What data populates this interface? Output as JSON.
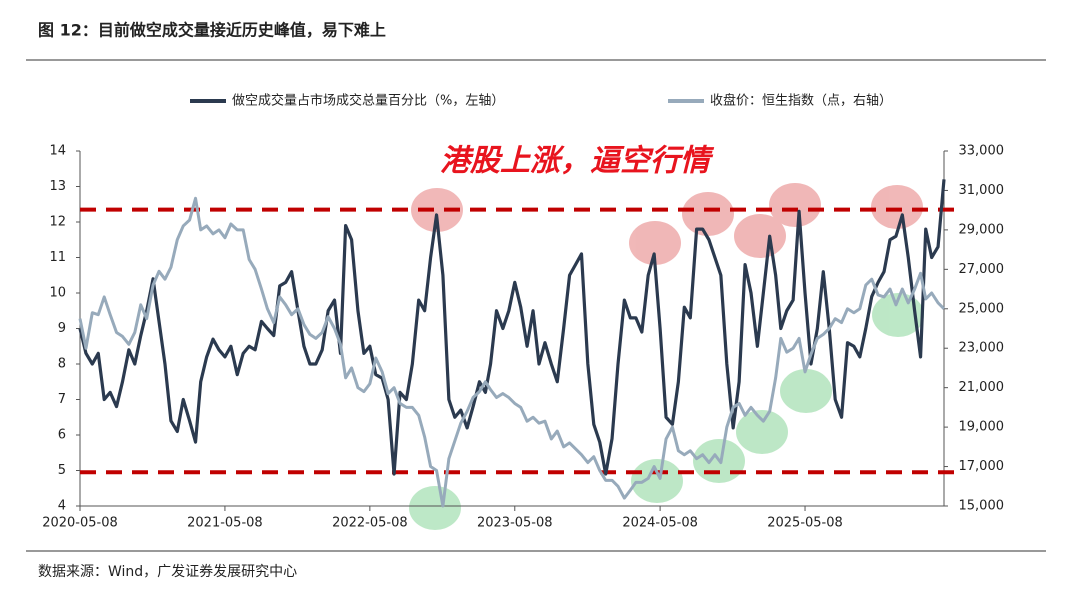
{
  "chart_data": {
    "type": "line",
    "title": "图 12：目前做空成交量接近历史峰值，易下难上",
    "source": "数据来源：Wind，广发证券发展研究中心",
    "annotation": "港股上涨，逼空行情",
    "x": [
      "2020-05-08",
      "2020-05-23",
      "2020-06-08",
      "2020-06-23",
      "2020-07-08",
      "2020-07-23",
      "2020-08-08",
      "2020-08-23",
      "2020-09-08",
      "2020-09-23",
      "2020-10-08",
      "2020-10-23",
      "2020-11-08",
      "2020-11-23",
      "2020-12-08",
      "2020-12-23",
      "2021-01-08",
      "2021-01-23",
      "2021-02-08",
      "2021-02-23",
      "2021-03-08",
      "2021-03-23",
      "2021-04-08",
      "2021-04-23",
      "2021-05-08",
      "2021-05-23",
      "2021-06-08",
      "2021-06-23",
      "2021-07-08",
      "2021-07-23",
      "2021-08-08",
      "2021-08-23",
      "2021-09-08",
      "2021-09-23",
      "2021-10-08",
      "2021-10-23",
      "2021-11-08",
      "2021-11-23",
      "2021-12-08",
      "2021-12-23",
      "2022-01-08",
      "2022-01-23",
      "2022-02-08",
      "2022-02-23",
      "2022-03-08",
      "2022-03-23",
      "2022-04-08",
      "2022-04-23",
      "2022-05-08",
      "2022-05-23",
      "2022-06-08",
      "2022-06-23",
      "2022-07-08",
      "2022-07-23",
      "2022-08-08",
      "2022-08-23",
      "2022-09-08",
      "2022-09-23",
      "2022-10-08",
      "2022-10-23",
      "2022-11-08",
      "2022-11-23",
      "2022-12-08",
      "2022-12-23",
      "2023-01-08",
      "2023-01-23",
      "2023-02-08",
      "2023-02-23",
      "2023-03-08",
      "2023-03-23",
      "2023-04-08",
      "2023-04-23",
      "2023-05-08",
      "2023-05-23",
      "2023-06-08",
      "2023-06-23",
      "2023-07-08",
      "2023-07-23",
      "2023-08-08",
      "2023-08-23",
      "2023-09-08",
      "2023-09-23",
      "2023-10-08",
      "2023-10-23",
      "2023-11-08",
      "2023-11-23",
      "2023-12-08",
      "2023-12-23",
      "2024-01-08",
      "2024-01-23",
      "2024-02-08",
      "2024-02-23",
      "2024-03-08",
      "2024-03-23",
      "2024-04-08",
      "2024-04-23",
      "2024-05-08",
      "2024-05-23",
      "2024-06-08",
      "2024-06-23",
      "2024-07-08",
      "2024-07-23",
      "2024-08-08",
      "2024-08-23",
      "2024-09-08",
      "2024-09-23",
      "2024-10-08",
      "2024-10-23",
      "2024-11-08",
      "2024-11-23",
      "2024-12-08",
      "2024-12-23",
      "2025-01-08",
      "2025-01-23",
      "2025-02-08",
      "2025-02-23",
      "2025-03-08",
      "2025-03-23",
      "2025-04-08",
      "2025-04-23",
      "2025-05-08",
      "2025-05-23",
      "2025-06-08",
      "2025-06-23",
      "2025-07-08",
      "2025-07-23",
      "2025-08-08",
      "2025-08-23",
      "2025-09-08",
      "2025-09-23",
      "2025-10-08",
      "2025-10-23",
      "2025-11-08",
      "2025-11-23",
      "2025-12-08",
      "2025-12-23",
      "2026-01-08",
      "2026-01-23",
      "2026-02-08",
      "2026-02-23",
      "2026-03-08",
      "2026-03-23",
      "2026-04-08",
      "2026-04-23"
    ],
    "xlim": [
      "2020-05-08",
      "2026-04-23"
    ],
    "xticks": [
      "2020-05-08",
      "2021-05-08",
      "2022-05-08",
      "2023-05-08",
      "2024-05-08",
      "2025-05-08"
    ],
    "ylim": [
      4,
      14
    ],
    "yticks": [
      4,
      5,
      6,
      7,
      8,
      9,
      10,
      11,
      12,
      13,
      14
    ],
    "y2lim": [
      15000,
      33000
    ],
    "y2ticks": [
      {
        "value": 15000,
        "label": "15,000"
      },
      {
        "value": 17000,
        "label": "17,000"
      },
      {
        "value": 19000,
        "label": "19,000"
      },
      {
        "value": 21000,
        "label": "21,000"
      },
      {
        "value": 23000,
        "label": "23,000"
      },
      {
        "value": 25000,
        "label": "25,000"
      },
      {
        "value": 27000,
        "label": "27,000"
      },
      {
        "value": 29000,
        "label": "29,000"
      },
      {
        "value": 31000,
        "label": "31,000"
      },
      {
        "value": 33000,
        "label": "33,000"
      }
    ],
    "reference_lines": [
      12.35,
      4.95
    ],
    "reference_color": "#c00000",
    "series": [
      {
        "name": "做空成交量占市场成交总量百分比（%，左轴）",
        "color": "#2b3a4f",
        "values": [
          9.0,
          8.3,
          8.0,
          8.3,
          7.0,
          7.2,
          6.8,
          7.5,
          8.4,
          8.0,
          8.8,
          9.5,
          10.4,
          9.2,
          8.0,
          6.4,
          6.1,
          7.0,
          6.4,
          5.8,
          7.5,
          8.2,
          8.7,
          8.4,
          8.2,
          8.5,
          7.7,
          8.3,
          8.5,
          8.4,
          9.2,
          9.0,
          8.8,
          10.2,
          10.3,
          10.6,
          9.5,
          8.5,
          8.0,
          8.0,
          8.4,
          9.5,
          9.8,
          8.3,
          11.9,
          11.5,
          9.5,
          8.3,
          8.5,
          7.7,
          7.6,
          7.0,
          4.9,
          7.2,
          7.0,
          8.0,
          9.8,
          9.5,
          11.0,
          12.2,
          10.5,
          7.0,
          6.5,
          6.7,
          6.2,
          6.8,
          7.5,
          7.2,
          8.0,
          9.5,
          9.0,
          9.5,
          10.3,
          9.6,
          8.5,
          9.5,
          8.0,
          8.6,
          8.0,
          7.5,
          9.0,
          10.5,
          10.8,
          11.1,
          8.0,
          6.3,
          5.8,
          4.9,
          5.9,
          8.0,
          9.8,
          9.3,
          9.3,
          8.9,
          10.5,
          11.1,
          9.0,
          6.5,
          6.3,
          7.5,
          9.6,
          9.3,
          11.8,
          11.8,
          11.5,
          11.0,
          10.5,
          8.0,
          6.2,
          7.5,
          10.8,
          10.0,
          8.5,
          10.0,
          11.6,
          10.5,
          9.0,
          9.5,
          9.8,
          12.3,
          10.0,
          8.0,
          9.0,
          10.6,
          9.0,
          7.0,
          6.5,
          8.6,
          8.5,
          8.2,
          9.0,
          9.9,
          10.3,
          10.6,
          11.5,
          11.6,
          12.2,
          11.0,
          9.5,
          8.2,
          11.8,
          11.0,
          11.3,
          13.2
        ]
      },
      {
        "name": "收盘价：恒生指数（点，右轴）",
        "color": "#97aabb",
        "axis": "y2",
        "values": [
          24500,
          23000,
          24800,
          24700,
          25600,
          24700,
          23800,
          23600,
          23200,
          23800,
          25200,
          24500,
          26200,
          26900,
          26500,
          27100,
          28500,
          29200,
          29500,
          30600,
          29000,
          29200,
          28800,
          29000,
          28600,
          29300,
          29000,
          29000,
          27500,
          27000,
          26000,
          25000,
          24300,
          25600,
          25200,
          24700,
          25000,
          24200,
          23700,
          23500,
          23800,
          24600,
          24000,
          23200,
          21500,
          22000,
          21000,
          20800,
          21200,
          22500,
          21800,
          20700,
          21000,
          20200,
          20000,
          20000,
          19600,
          18500,
          17000,
          16800,
          15000,
          17400,
          18300,
          19200,
          19800,
          20500,
          20800,
          21300,
          20900,
          20500,
          20700,
          20500,
          20200,
          20000,
          19300,
          19500,
          19200,
          19300,
          18400,
          18800,
          18000,
          18200,
          17900,
          17600,
          17200,
          17500,
          16800,
          16300,
          16300,
          16000,
          15400,
          15800,
          16200,
          16200,
          16400,
          17000,
          16400,
          18400,
          19000,
          17800,
          17600,
          17800,
          17400,
          17600,
          17200,
          17600,
          17200,
          19000,
          20000,
          20200,
          19600,
          20000,
          19600,
          19300,
          19800,
          21500,
          23500,
          22800,
          23000,
          23500,
          21800,
          22700,
          23500,
          23700,
          24000,
          24500,
          24300,
          25000,
          24800,
          25000,
          26200,
          26500,
          25700,
          25600,
          26000,
          25200,
          26000,
          25300,
          26000,
          26800,
          25500,
          25800,
          25300,
          25000
        ]
      }
    ]
  }
}
